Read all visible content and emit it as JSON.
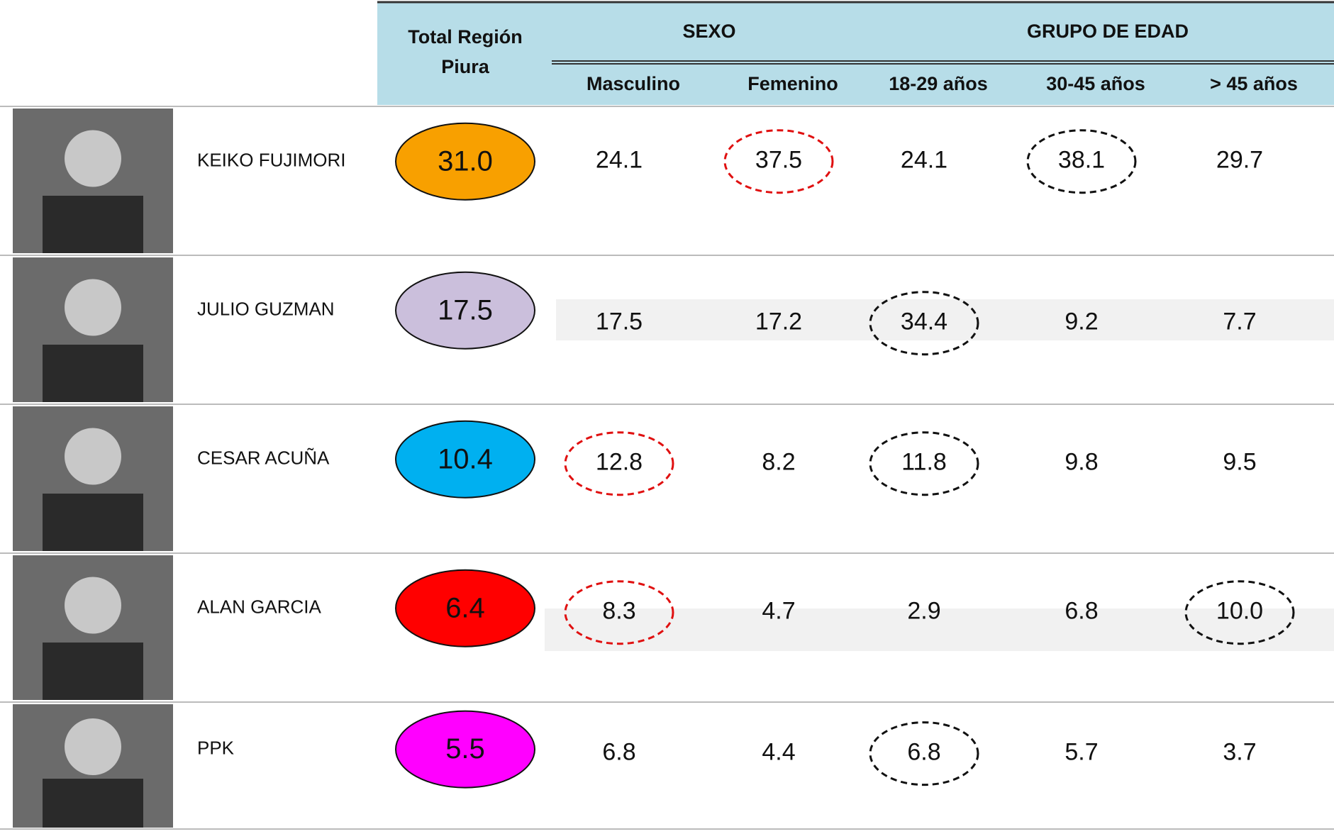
{
  "header": {
    "total": "Total Región Piura",
    "groups": [
      "SEXO",
      "GRUPO DE EDAD"
    ],
    "columns": [
      "Masculino",
      "Femenino",
      "18-29 años",
      "30-45 años",
      "> 45 años"
    ]
  },
  "rows": [
    {
      "name": "KEIKO FUJIMORI",
      "total": "31.0",
      "color": "#f8a000",
      "values": [
        "24.1",
        "37.5",
        "24.1",
        "38.1",
        "29.7"
      ]
    },
    {
      "name": "JULIO GUZMAN",
      "total": "17.5",
      "color": "#cbbfdc",
      "values": [
        "17.5",
        "17.2",
        "34.4",
        "9.2",
        "7.7"
      ]
    },
    {
      "name": "CESAR ACUÑA",
      "total": "10.4",
      "color": "#00b0f0",
      "values": [
        "12.8",
        "8.2",
        "11.8",
        "9.8",
        "9.5"
      ]
    },
    {
      "name": "ALAN GARCIA",
      "total": "6.4",
      "color": "#ff0000",
      "values": [
        "8.3",
        "4.7",
        "2.9",
        "6.8",
        "10.0"
      ]
    },
    {
      "name": "PPK",
      "total": "5.5",
      "color": "#ff00ff",
      "values": [
        "6.8",
        "4.4",
        "6.8",
        "5.7",
        "3.7"
      ]
    }
  ]
}
